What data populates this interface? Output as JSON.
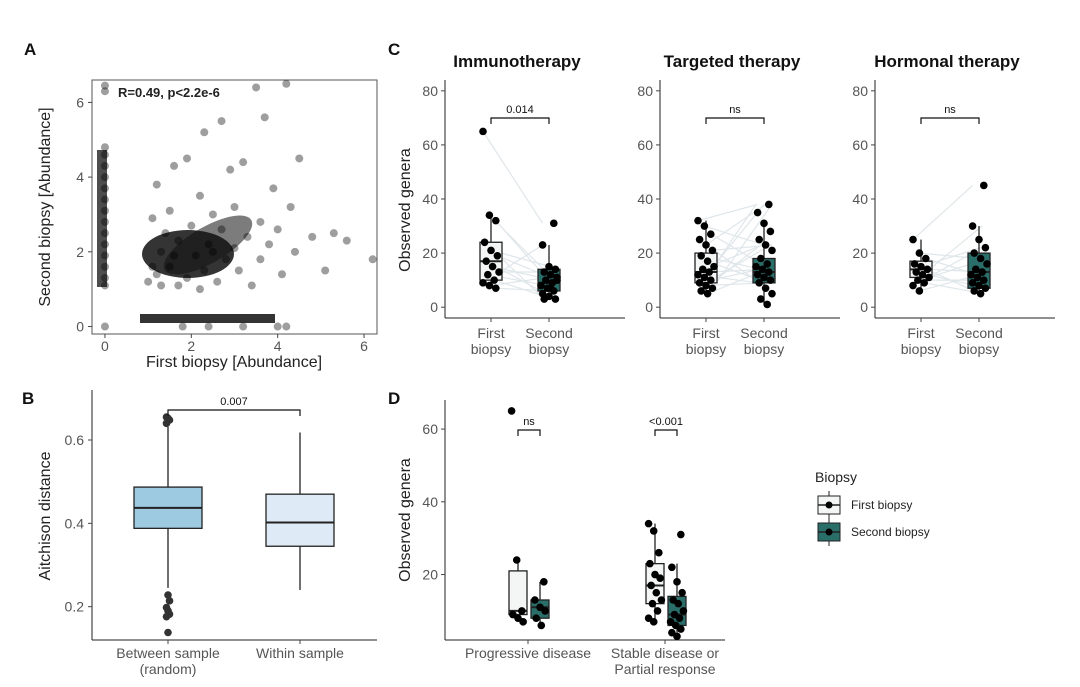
{
  "panel_labels": {
    "a": "A",
    "b": "B",
    "c": "C",
    "d": "D"
  },
  "colors": {
    "first_fill": "#f4f6f6",
    "second_fill": "#2a6e6a",
    "box_b_between": "#9ecae1",
    "box_b_within": "#deebf7",
    "pairs": "#dfe6e9"
  },
  "chart_data": [
    {
      "id": "A",
      "type": "scatter",
      "stat_label": "R=0.49, p<2.2e-6",
      "xlabel": "First biopsy [Abundance]",
      "ylabel": "Second biopsy [Abundance]",
      "xlim": [
        -0.3,
        6.3
      ],
      "ylim": [
        -0.2,
        6.6
      ],
      "xticks": [
        "0",
        "2",
        "4",
        "6"
      ],
      "yticks": [
        "0",
        "2",
        "4",
        "6"
      ],
      "note": "dense cloud plus zero-inflated columns on both axes",
      "points": [
        [
          0,
          6.45
        ],
        [
          0,
          6.3
        ],
        [
          0,
          4.8
        ],
        [
          0,
          4.6
        ],
        [
          0,
          4.3
        ],
        [
          0,
          4.0
        ],
        [
          0,
          3.7
        ],
        [
          0,
          3.4
        ],
        [
          0,
          3.1
        ],
        [
          0,
          2.8
        ],
        [
          0,
          2.5
        ],
        [
          0,
          2.2
        ],
        [
          0,
          1.9
        ],
        [
          0,
          1.6
        ],
        [
          0,
          1.3
        ],
        [
          0,
          1.1
        ],
        [
          0,
          0
        ],
        [
          1.8,
          0
        ],
        [
          2.4,
          0
        ],
        [
          3.2,
          0
        ],
        [
          4.0,
          0
        ],
        [
          4.2,
          0
        ],
        [
          4.2,
          6.5
        ],
        [
          3.5,
          6.4
        ],
        [
          3.7,
          5.6
        ],
        [
          2.7,
          5.5
        ],
        [
          2.3,
          5.2
        ],
        [
          1.9,
          4.5
        ],
        [
          3.2,
          4.4
        ],
        [
          1.6,
          4.3
        ],
        [
          2.9,
          4.2
        ],
        [
          4.5,
          4.5
        ],
        [
          3.9,
          3.7
        ],
        [
          4.3,
          3.2
        ],
        [
          1.2,
          3.8
        ],
        [
          5.3,
          2.5
        ],
        [
          5.6,
          2.3
        ],
        [
          6.2,
          1.8
        ],
        [
          4.8,
          2.4
        ],
        [
          5.1,
          1.5
        ],
        [
          2.2,
          3.5
        ],
        [
          2.5,
          3.0
        ],
        [
          1.5,
          3.1
        ],
        [
          3.0,
          3.2
        ],
        [
          3.6,
          2.8
        ],
        [
          4.0,
          2.6
        ],
        [
          1.1,
          2.9
        ],
        [
          2.0,
          2.7
        ],
        [
          2.7,
          2.6
        ],
        [
          1.4,
          2.5
        ],
        [
          3.3,
          2.4
        ],
        [
          1.7,
          2.3
        ],
        [
          2.4,
          2.2
        ],
        [
          3.0,
          2.1
        ],
        [
          1.3,
          2.0
        ],
        [
          2.1,
          1.9
        ],
        [
          2.8,
          1.8
        ],
        [
          3.6,
          1.8
        ],
        [
          1.5,
          1.6
        ],
        [
          2.3,
          1.5
        ],
        [
          3.1,
          1.5
        ],
        [
          1.2,
          1.4
        ],
        [
          1.9,
          1.3
        ],
        [
          2.6,
          1.2
        ],
        [
          3.4,
          1.1
        ],
        [
          1.0,
          1.2
        ],
        [
          1.7,
          1.1
        ],
        [
          2.2,
          1.0
        ],
        [
          4.1,
          1.4
        ],
        [
          4.4,
          2.0
        ],
        [
          1.1,
          1.6
        ],
        [
          1.6,
          1.9
        ],
        [
          2.5,
          2.0
        ],
        [
          3.8,
          2.2
        ],
        [
          1.3,
          1.1
        ]
      ]
    },
    {
      "id": "B",
      "type": "box",
      "ylabel": "Aitchison distance",
      "ylim": [
        0.12,
        0.72
      ],
      "yticks": [
        "0.2",
        "0.4",
        "0.6"
      ],
      "categories": [
        "Between sample\n(random)",
        "Within sample"
      ],
      "boxes": [
        {
          "q1": 0.388,
          "median": 0.437,
          "q3": 0.487,
          "lower": 0.245,
          "upper": 0.632
        },
        {
          "q1": 0.345,
          "median": 0.402,
          "q3": 0.47,
          "lower": 0.24,
          "upper": 0.618
        }
      ],
      "outliers": [
        0.655,
        0.652,
        0.648,
        0.64,
        0.228,
        0.214,
        0.198,
        0.19,
        0.182,
        0.176,
        0.138
      ],
      "bracket_label": "0.007"
    },
    {
      "id": "C",
      "type": "box",
      "ylabel": "Observed genera",
      "ylim": [
        -4,
        84
      ],
      "yticks": [
        "0",
        "20",
        "40",
        "60",
        "80"
      ],
      "categories": [
        "First\nbiopsy",
        "Second\nbiopsy"
      ],
      "facets": [
        {
          "title": "Immunotherapy",
          "bracket_label": "0.014",
          "boxes": [
            {
              "q1": 10,
              "median": 17,
              "q3": 24,
              "lower": 7,
              "upper": 34
            },
            {
              "q1": 6,
              "median": 9,
              "q3": 14,
              "lower": 3,
              "upper": 23
            }
          ],
          "points_first": [
            65,
            34,
            32,
            24,
            21,
            19,
            17,
            15,
            13,
            12,
            10,
            9,
            8,
            7
          ],
          "points_second": [
            31,
            23,
            15,
            14,
            13,
            12,
            11,
            10,
            9,
            8,
            7,
            6,
            5,
            4,
            3,
            3,
            7,
            10
          ]
        },
        {
          "title": "Targeted therapy",
          "bracket_label": "ns",
          "boxes": [
            {
              "q1": 9,
              "median": 13,
              "q3": 20,
              "lower": 5,
              "upper": 32
            },
            {
              "q1": 9,
              "median": 13,
              "q3": 18,
              "lower": 1,
              "upper": 31
            }
          ],
          "points_first": [
            32,
            30,
            27,
            25,
            23,
            21,
            19,
            17,
            15,
            14,
            13,
            12,
            11,
            10,
            9,
            8,
            7,
            6,
            5
          ],
          "points_second": [
            38,
            35,
            31,
            28,
            25,
            23,
            21,
            18,
            16,
            15,
            14,
            13,
            12,
            11,
            10,
            9,
            7,
            5,
            3,
            1
          ]
        },
        {
          "title": "Hormonal therapy",
          "bracket_label": "ns",
          "boxes": [
            {
              "q1": 11,
              "median": 14,
              "q3": 17,
              "lower": 6,
              "upper": 25
            },
            {
              "q1": 7,
              "median": 13,
              "q3": 20,
              "lower": 5,
              "upper": 30
            }
          ],
          "points_first": [
            25,
            20,
            18,
            16,
            15,
            14,
            13,
            12,
            11,
            10,
            9,
            8,
            6
          ],
          "points_second": [
            45,
            30,
            25,
            22,
            20,
            18,
            16,
            14,
            13,
            12,
            11,
            10,
            9,
            8,
            7,
            6,
            5
          ]
        }
      ]
    },
    {
      "id": "D",
      "type": "box",
      "ylabel": "Observed genera",
      "ylim": [
        2,
        68
      ],
      "yticks": [
        "20",
        "40",
        "60"
      ],
      "groups": [
        {
          "label": "Progressive disease",
          "bracket_label": "ns",
          "boxes": [
            {
              "q1": 9,
              "median": 10,
              "q3": 21,
              "lower": 7,
              "upper": 24
            },
            {
              "q1": 8,
              "median": 11,
              "q3": 13,
              "lower": 6,
              "upper": 18
            }
          ],
          "points_first": [
            65,
            24,
            10,
            9,
            8,
            7
          ],
          "points_second": [
            18,
            13,
            11,
            10,
            8,
            6
          ]
        },
        {
          "label": "Stable disease or\nPartial response",
          "bracket_label": "<0.001",
          "boxes": [
            {
              "q1": 12,
              "median": 17,
              "q3": 23,
              "lower": 7,
              "upper": 34
            },
            {
              "q1": 6,
              "median": 9,
              "q3": 14,
              "lower": 3,
              "upper": 23
            }
          ],
          "points_first": [
            34,
            32,
            26,
            23,
            20,
            19,
            17,
            15,
            13,
            12,
            10,
            8,
            7
          ],
          "points_second": [
            31,
            22,
            18,
            15,
            13,
            12,
            10,
            9,
            8,
            7,
            6,
            5,
            4,
            3
          ]
        }
      ]
    }
  ],
  "legend": {
    "title": "Biopsy",
    "items": [
      "First biopsy",
      "Second biopsy"
    ]
  }
}
